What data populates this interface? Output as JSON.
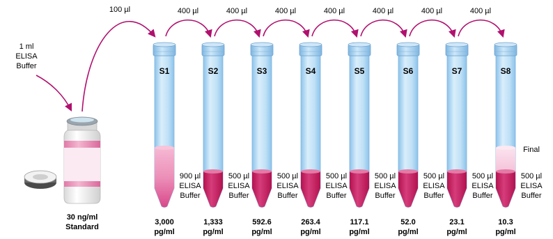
{
  "colors": {
    "arrow": "#b0106e",
    "tube_light": "#d6ecfa",
    "tube_mid": "#a9d4f2",
    "tube_edge": "#6fa9d6",
    "liquid_dark": "#c2185b",
    "liquid_light": "#f2a8c8",
    "liquid_faint": "#f9d6e6"
  },
  "diagram": {
    "buffer_label": [
      "1 ml",
      "ELISA",
      "Buffer"
    ],
    "initial_transfer": "100 µl",
    "vial_label": [
      "30 ng/ml",
      "Standard"
    ],
    "final_label": "Final",
    "transfers": [
      "400 µl",
      "400 µl",
      "400 µl",
      "400 µl",
      "400 µl",
      "400 µl",
      "400 µl"
    ],
    "tubes": [
      {
        "name": "S1",
        "buffer": [
          "900 µl",
          "ELISA",
          "Buffer"
        ],
        "concentration": [
          "3,000",
          "pg/ml"
        ],
        "fill": "full"
      },
      {
        "name": "S2",
        "buffer": [
          "500 µl",
          "ELISA",
          "Buffer"
        ],
        "concentration": [
          "1,333",
          "pg/ml"
        ],
        "fill": "base"
      },
      {
        "name": "S3",
        "buffer": [
          "500 µl",
          "ELISA",
          "Buffer"
        ],
        "concentration": [
          "592.6",
          "pg/ml"
        ],
        "fill": "base"
      },
      {
        "name": "S4",
        "buffer": [
          "500 µl",
          "ELISA",
          "Buffer"
        ],
        "concentration": [
          "263.4",
          "pg/ml"
        ],
        "fill": "base"
      },
      {
        "name": "S5",
        "buffer": [
          "500 µl",
          "ELISA",
          "Buffer"
        ],
        "concentration": [
          "117.1",
          "pg/ml"
        ],
        "fill": "base"
      },
      {
        "name": "S6",
        "buffer": [
          "500 µl",
          "ELISA",
          "Buffer"
        ],
        "concentration": [
          "52.0",
          "pg/ml"
        ],
        "fill": "base"
      },
      {
        "name": "S7",
        "buffer": [
          "500 µl",
          "ELISA",
          "Buffer"
        ],
        "concentration": [
          "23.1",
          "pg/ml"
        ],
        "fill": "base"
      },
      {
        "name": "S8",
        "buffer": [
          "500 µl",
          "ELISA",
          "Buffer"
        ],
        "concentration": [
          "10.3",
          "pg/ml"
        ],
        "fill": "final"
      }
    ]
  }
}
